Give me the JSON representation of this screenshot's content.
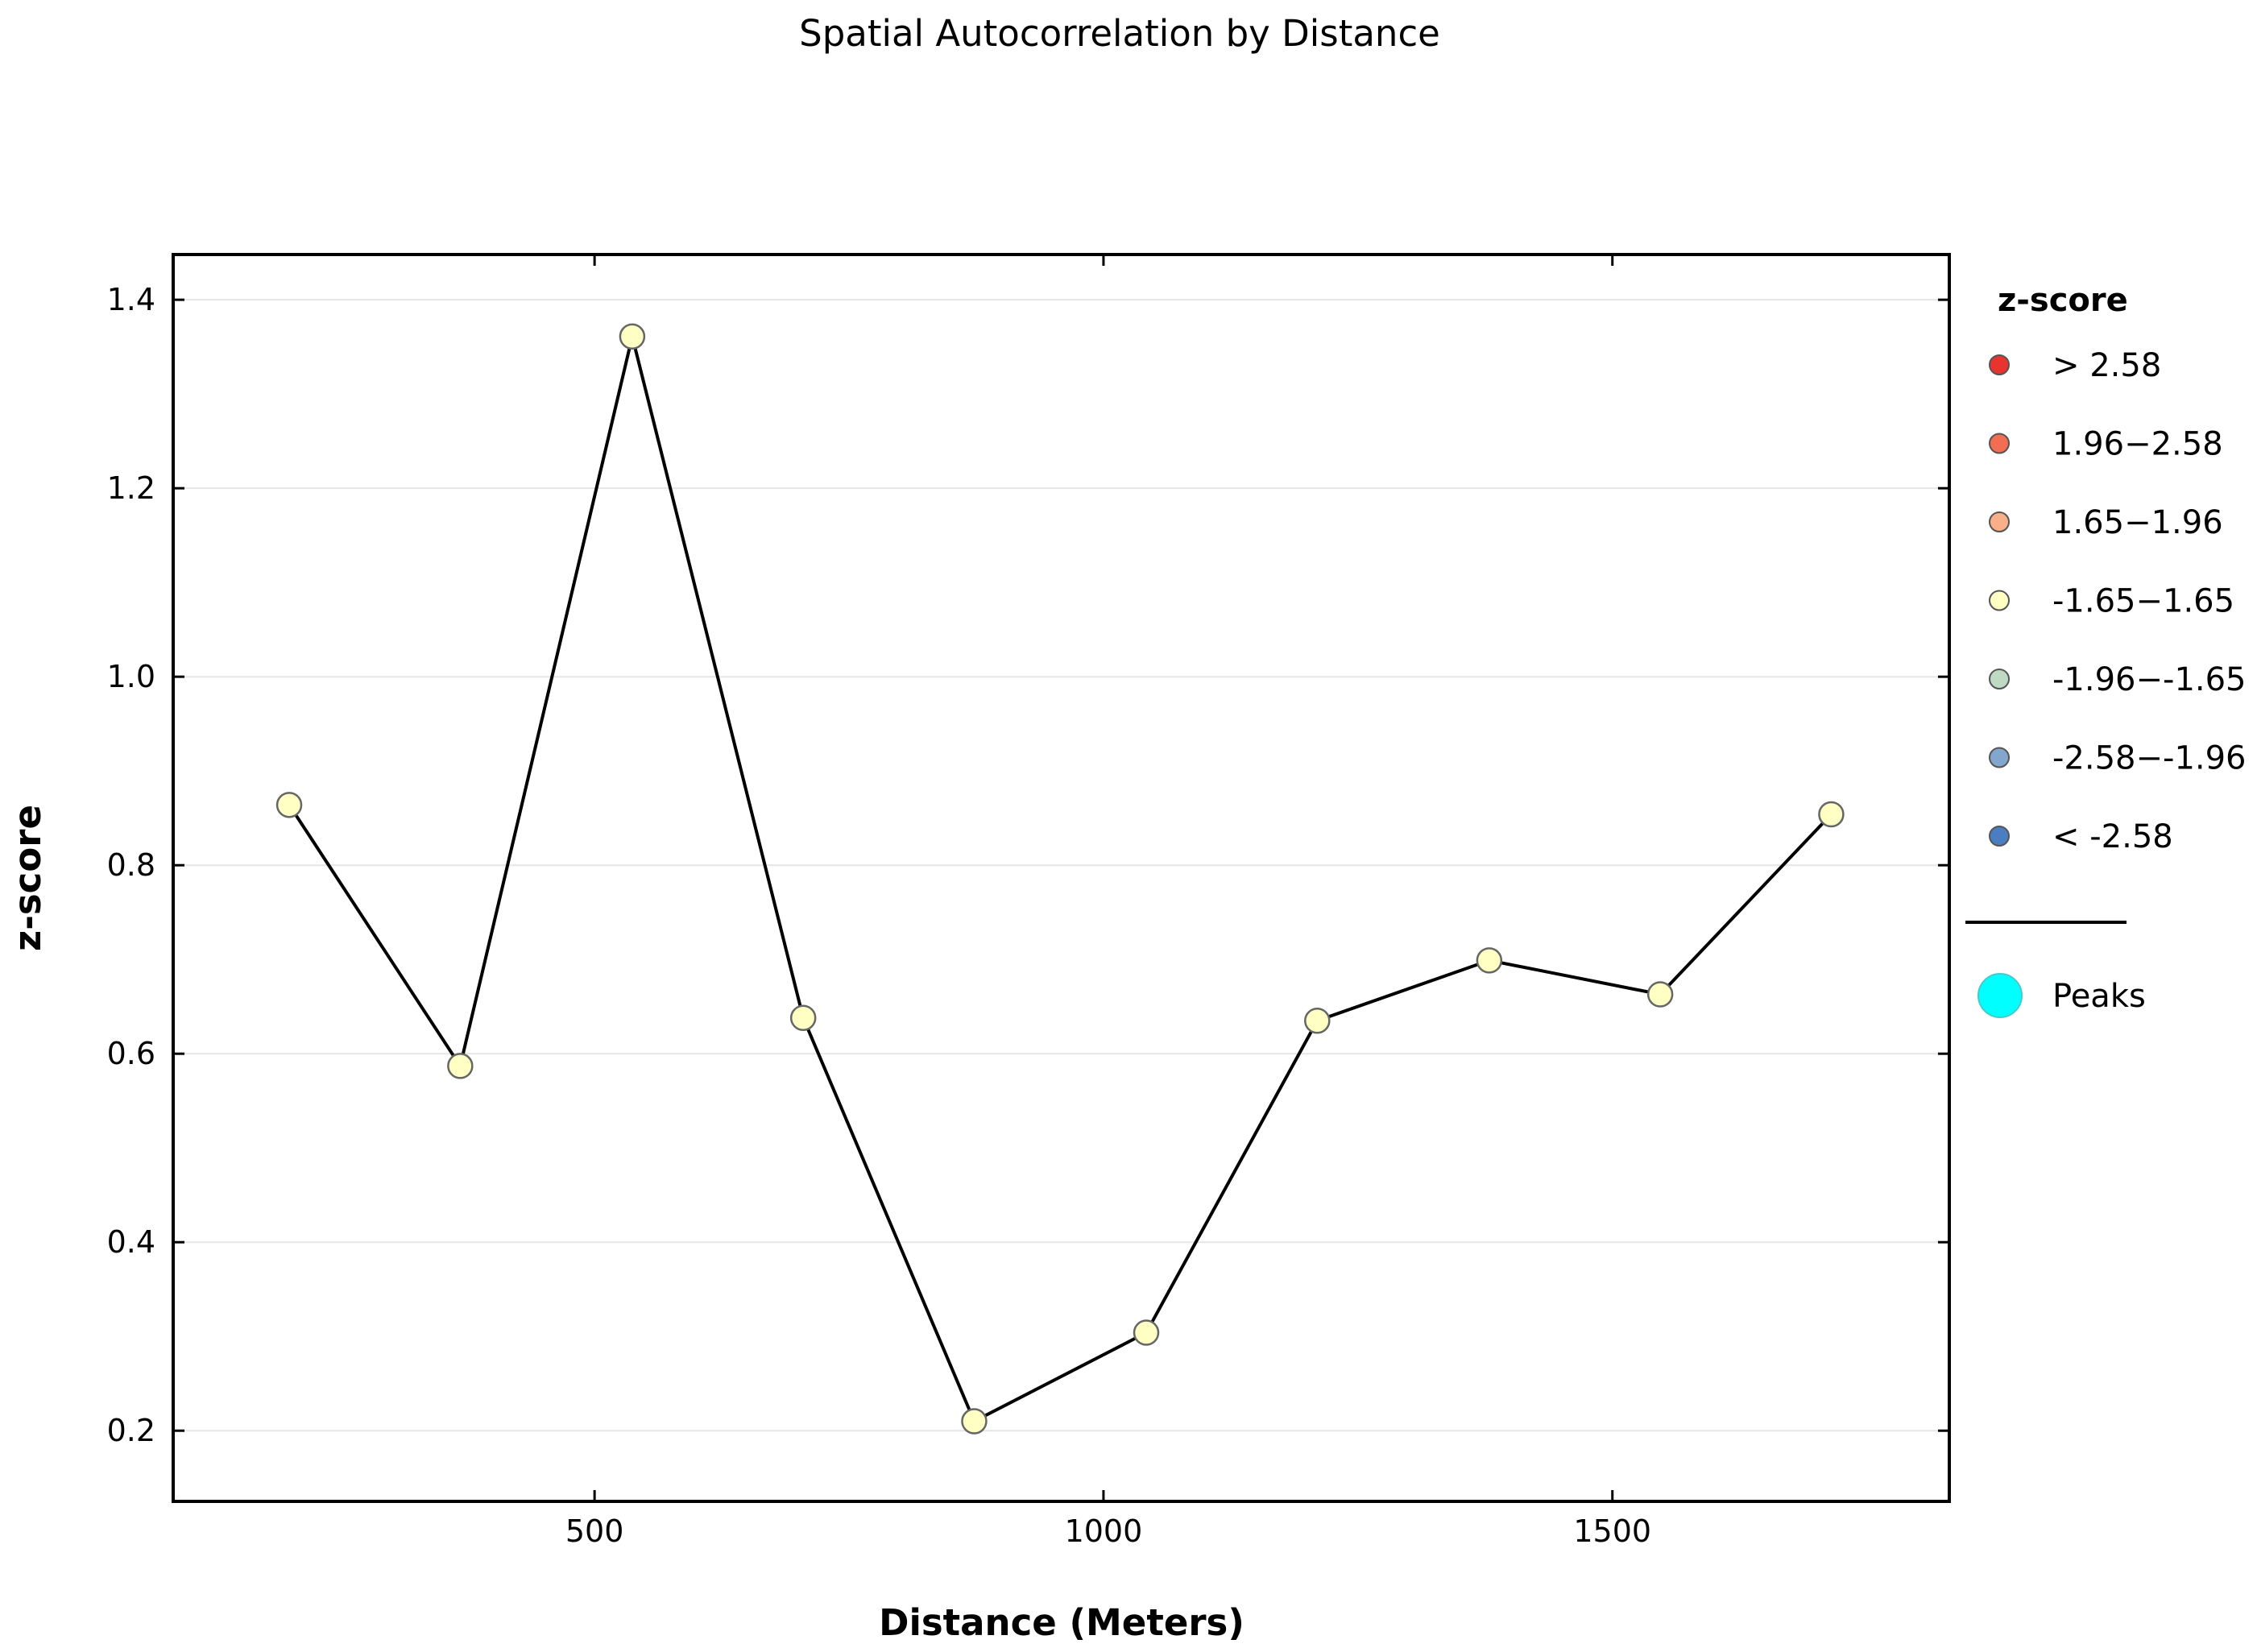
{
  "chart_data": {
    "type": "line",
    "title": "Spatial Autocorrelation by Distance",
    "xlabel": "Distance (Meters)",
    "ylabel": "z-score",
    "xlim": [
      86,
      1831
    ],
    "ylim": [
      0.125,
      1.448
    ],
    "x_ticks": [
      500,
      1000,
      1500
    ],
    "y_ticks": [
      0.2,
      0.4,
      0.6,
      0.8,
      1.0,
      1.2,
      1.4
    ],
    "x_tick_labels": [
      "500",
      "1000",
      "1500"
    ],
    "y_tick_labels": [
      "0.2",
      "0.4",
      "0.6",
      "0.8",
      "1.0",
      "1.2",
      "1.4"
    ],
    "grid": "horizontal",
    "legend_placement": "right",
    "series": [
      {
        "x": [
          200,
          368,
          537,
          705,
          873,
          1042,
          1210,
          1379,
          1547,
          1715
        ],
        "y": [
          0.864,
          0.587,
          1.361,
          0.638,
          0.21,
          0.304,
          0.635,
          0.699,
          0.663,
          0.854
        ],
        "line_color": "#000000",
        "marker_color": "#ffffc4"
      }
    ],
    "legend": {
      "title": "z-score",
      "items": [
        {
          "label": "> 2.58",
          "color": "#e8332f"
        },
        {
          "label": "1.96−2.58",
          "color": "#f26d52"
        },
        {
          "label": "1.65−1.96",
          "color": "#f9b08a"
        },
        {
          "label": "-1.65−1.65",
          "color": "#ffffc4"
        },
        {
          "label": "-1.96−-1.65",
          "color": "#bfdac2"
        },
        {
          "label": "-2.58−-1.96",
          "color": "#83a6cc"
        },
        {
          "label": "< -2.58",
          "color": "#4b7ec1"
        }
      ],
      "peaks_label": "Peaks",
      "peaks_color": "#00ffff"
    }
  }
}
